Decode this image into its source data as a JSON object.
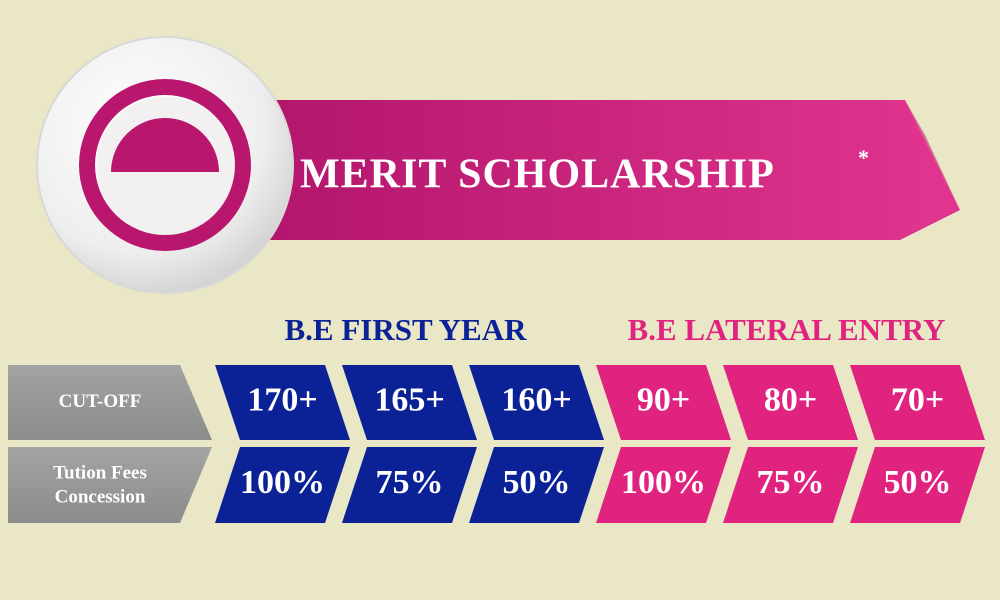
{
  "header": {
    "title": "MERIT SCHOLARSHIP",
    "mark": "*"
  },
  "row_labels": [
    {
      "lines": [
        "CUT-OFF"
      ]
    },
    {
      "lines": [
        "Tution Fees",
        "Concession"
      ]
    }
  ],
  "groups": [
    {
      "title": "B.E FIRST YEAR",
      "columns": [
        {
          "cutoff": "170+",
          "concession": "100%"
        },
        {
          "cutoff": "165+",
          "concession": "75%"
        },
        {
          "cutoff": "160+",
          "concession": "50%"
        }
      ]
    },
    {
      "title": "B.E LATERAL ENTRY",
      "columns": [
        {
          "cutoff": "90+",
          "concession": "100%"
        },
        {
          "cutoff": "80+",
          "concession": "75%"
        },
        {
          "cutoff": "70+",
          "concession": "50%"
        }
      ]
    }
  ]
}
